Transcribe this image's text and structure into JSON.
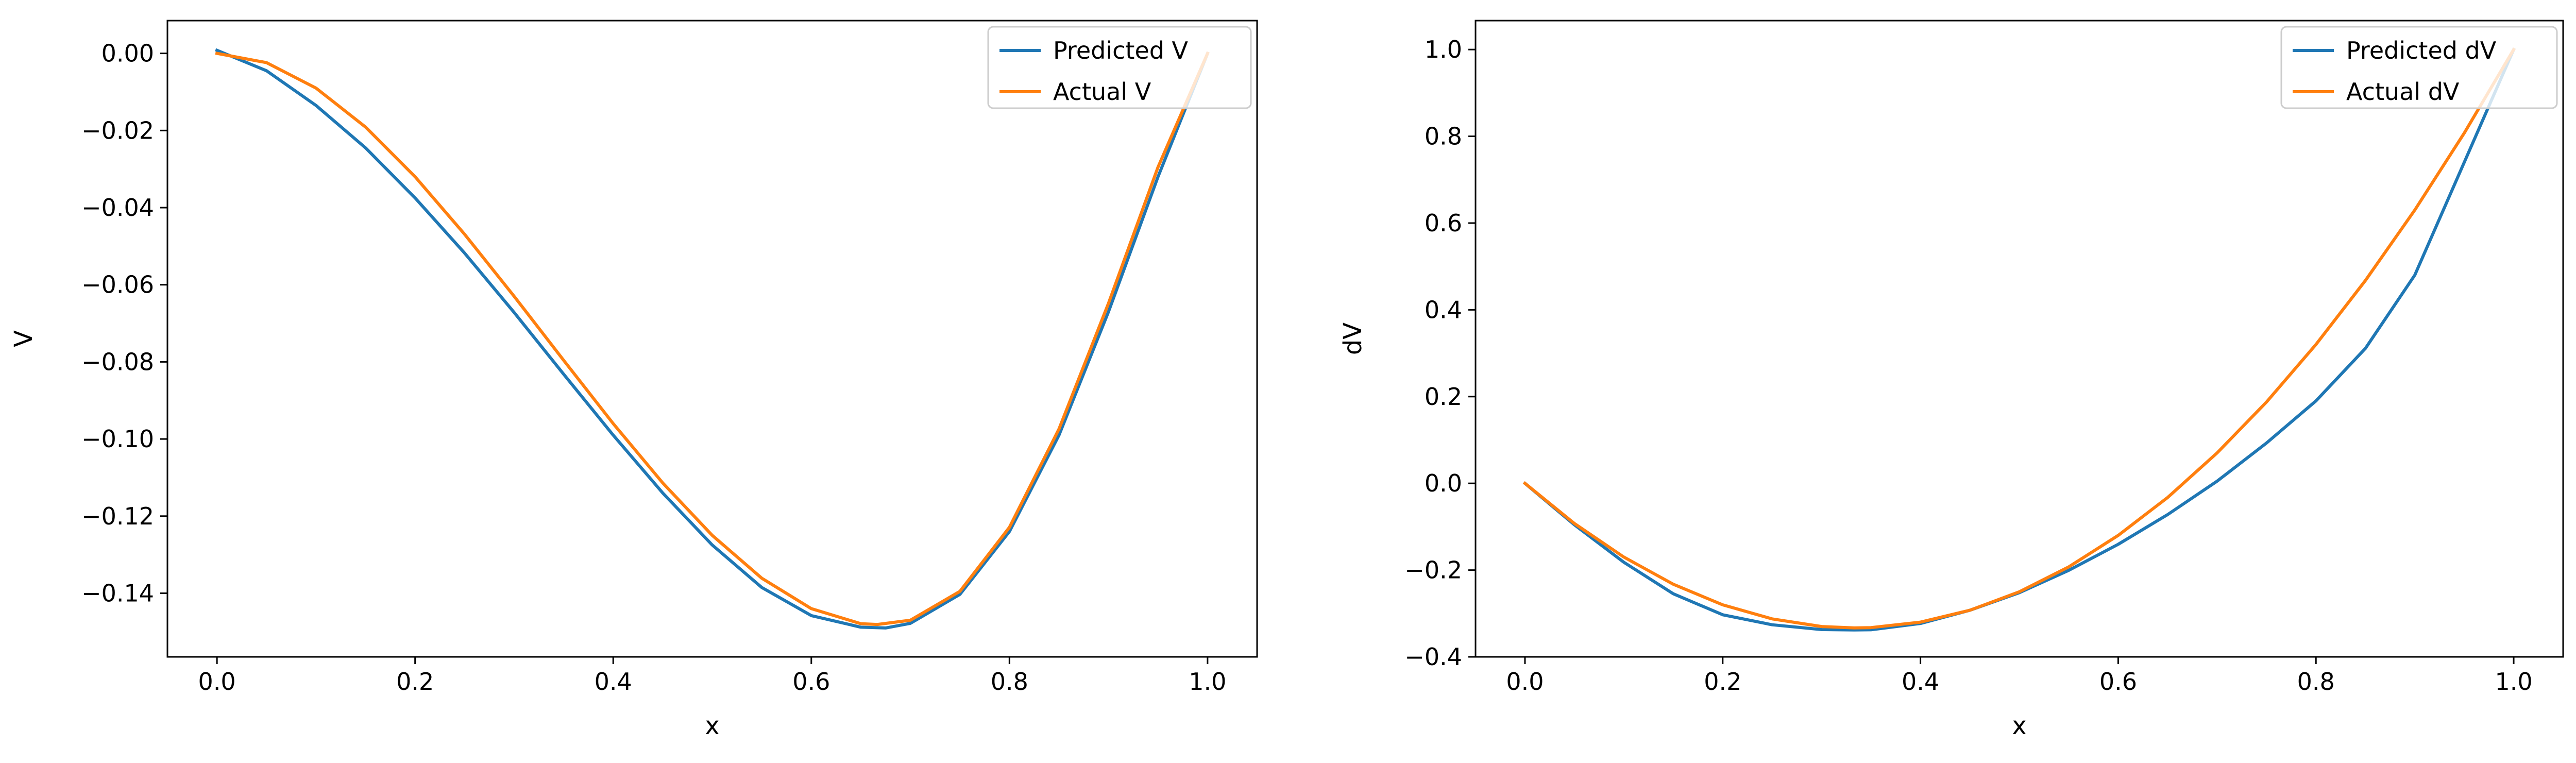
{
  "chart_data": [
    {
      "type": "line",
      "xlabel": "x",
      "ylabel": "V",
      "xlim": [
        -0.05,
        1.05
      ],
      "ylim": [
        -0.1565,
        0.0085
      ],
      "xticks": [
        0.0,
        0.2,
        0.4,
        0.6,
        0.8,
        1.0
      ],
      "xtick_labels": [
        "0.0",
        "0.2",
        "0.4",
        "0.6",
        "0.8",
        "1.0"
      ],
      "yticks": [
        0.0,
        -0.02,
        -0.04,
        -0.06,
        -0.08,
        -0.1,
        -0.12,
        -0.14
      ],
      "ytick_labels": [
        "0.00",
        "−0.02",
        "−0.04",
        "−0.06",
        "−0.08",
        "−0.10",
        "−0.12",
        "−0.14"
      ],
      "grid": false,
      "legend": "top-right",
      "series": [
        {
          "name": "Predicted V",
          "color": "#1f77b4",
          "x": [
            0.0,
            0.05,
            0.1,
            0.15,
            0.2,
            0.25,
            0.3,
            0.35,
            0.4,
            0.45,
            0.5,
            0.55,
            0.6,
            0.65,
            0.675,
            0.7,
            0.75,
            0.8,
            0.85,
            0.9,
            0.95,
            1.0
          ],
          "y": [
            0.0008,
            -0.0045,
            -0.0135,
            -0.0245,
            -0.0375,
            -0.0518,
            -0.0672,
            -0.0832,
            -0.099,
            -0.114,
            -0.1275,
            -0.1385,
            -0.1458,
            -0.1488,
            -0.149,
            -0.1478,
            -0.1403,
            -0.124,
            -0.099,
            -0.067,
            -0.032,
            0.0
          ]
        },
        {
          "name": "Actual V",
          "color": "#ff7f0e",
          "x": [
            0.0,
            0.05,
            0.1,
            0.15,
            0.2,
            0.25,
            0.3,
            0.35,
            0.4,
            0.45,
            0.5,
            0.55,
            0.6,
            0.65,
            0.6667,
            0.7,
            0.75,
            0.8,
            0.85,
            0.9,
            0.95,
            1.0
          ],
          "y": [
            0.0,
            -0.0024,
            -0.009,
            -0.0191,
            -0.032,
            -0.0469,
            -0.063,
            -0.0796,
            -0.096,
            -0.1114,
            -0.125,
            -0.1361,
            -0.144,
            -0.1479,
            -0.1481,
            -0.147,
            -0.1395,
            -0.1229,
            -0.0974,
            -0.0648,
            -0.0295,
            0.0
          ]
        }
      ]
    },
    {
      "type": "line",
      "xlabel": "x",
      "ylabel": "dV",
      "xlim": [
        -0.05,
        1.05
      ],
      "ylim": [
        -0.4,
        1.0667
      ],
      "xticks": [
        0.0,
        0.2,
        0.4,
        0.6,
        0.8,
        1.0
      ],
      "xtick_labels": [
        "0.0",
        "0.2",
        "0.4",
        "0.6",
        "0.8",
        "1.0"
      ],
      "yticks": [
        -0.4,
        -0.2,
        0.0,
        0.2,
        0.4,
        0.6,
        0.8,
        1.0
      ],
      "ytick_labels": [
        "−0.4",
        "−0.2",
        "0.0",
        "0.2",
        "0.4",
        "0.6",
        "0.8",
        "1.0"
      ],
      "grid": false,
      "legend": "top-right",
      "series": [
        {
          "name": "Predicted dV",
          "color": "#1f77b4",
          "x": [
            0.0,
            0.05,
            0.1,
            0.15,
            0.2,
            0.25,
            0.3,
            0.333,
            0.35,
            0.4,
            0.45,
            0.5,
            0.55,
            0.6,
            0.65,
            0.7,
            0.75,
            0.8,
            0.85,
            0.9,
            0.95,
            1.0
          ],
          "y": [
            0.0,
            -0.0955,
            -0.182,
            -0.2545,
            -0.303,
            -0.326,
            -0.337,
            -0.338,
            -0.3375,
            -0.323,
            -0.2925,
            -0.252,
            -0.2005,
            -0.1405,
            -0.072,
            0.005,
            0.093,
            0.19,
            0.311,
            0.48,
            0.74,
            1.0
          ]
        },
        {
          "name": "Actual dV",
          "color": "#ff7f0e",
          "x": [
            0.0,
            0.05,
            0.1,
            0.15,
            0.2,
            0.25,
            0.3,
            0.333,
            0.35,
            0.4,
            0.45,
            0.5,
            0.55,
            0.6,
            0.65,
            0.7,
            0.75,
            0.8,
            0.85,
            0.9,
            0.95,
            1.0
          ],
          "y": [
            0.0,
            -0.0925,
            -0.17,
            -0.2325,
            -0.28,
            -0.3125,
            -0.33,
            -0.3333,
            -0.3325,
            -0.32,
            -0.2925,
            -0.25,
            -0.1925,
            -0.12,
            -0.0325,
            0.07,
            0.1875,
            0.32,
            0.4675,
            0.63,
            0.8075,
            1.0
          ]
        }
      ]
    }
  ]
}
